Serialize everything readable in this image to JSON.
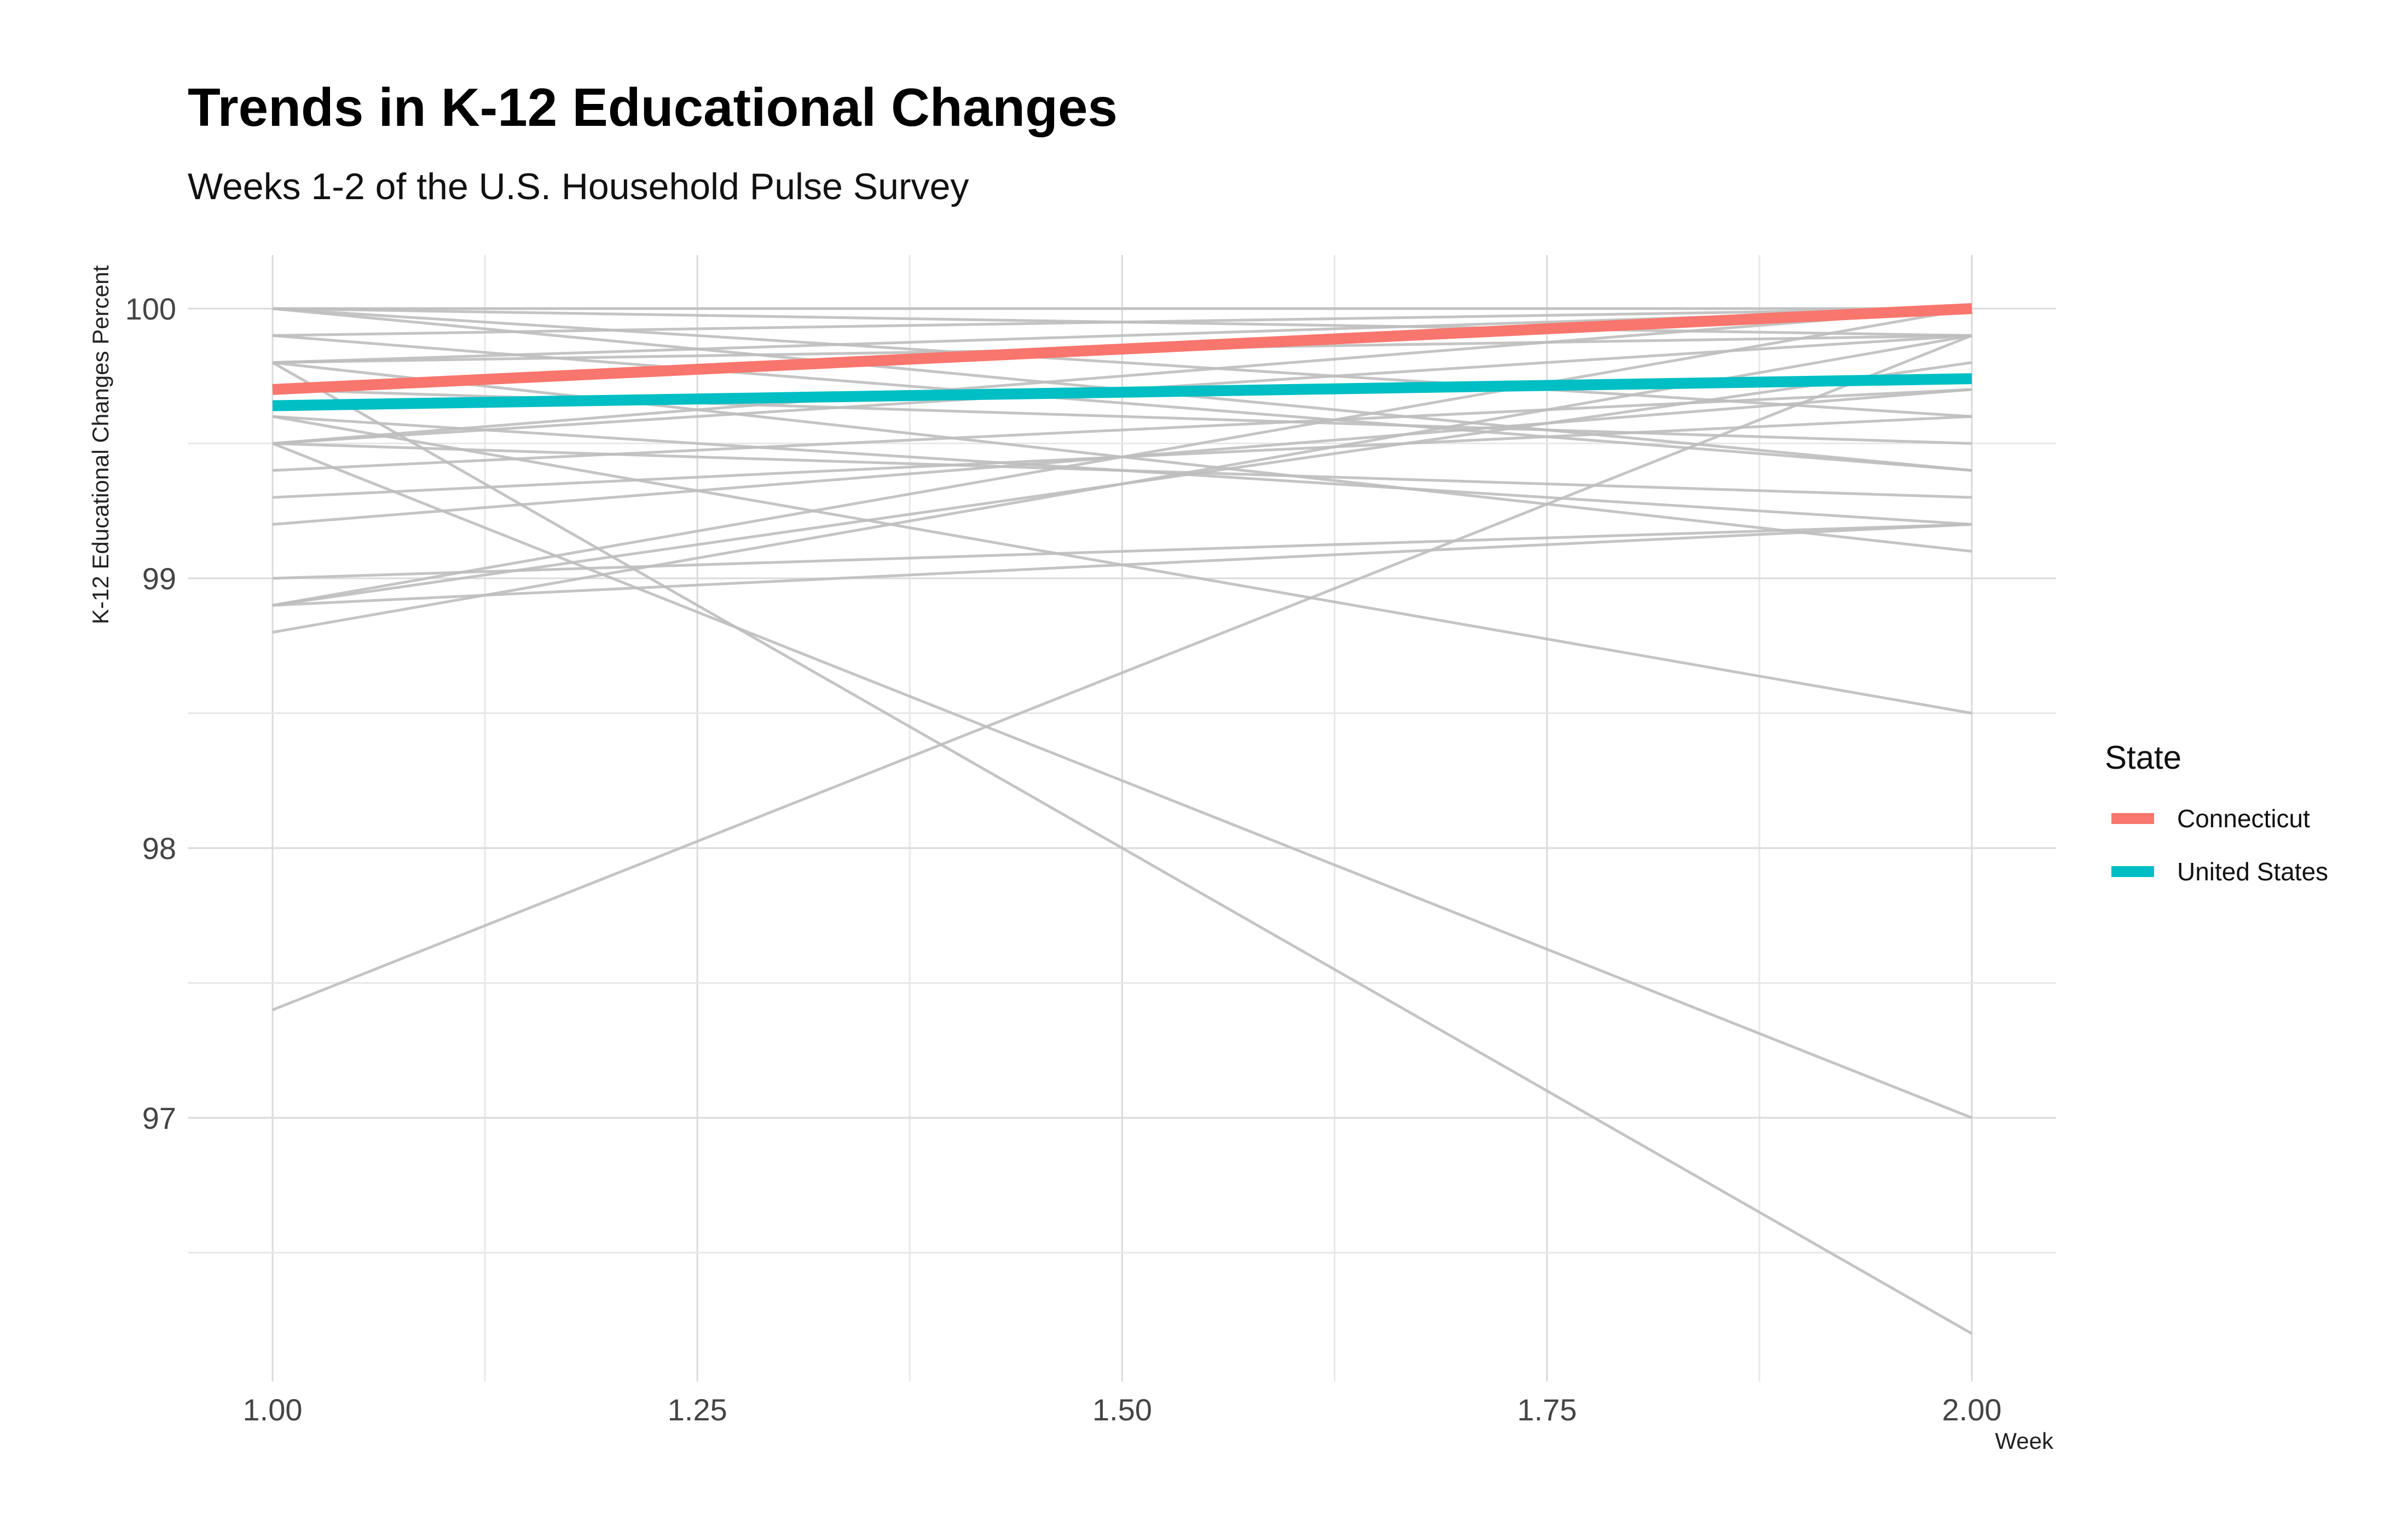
{
  "chart_data": {
    "type": "line",
    "title": "Trends in K-12 Educational Changes",
    "subtitle": "Weeks 1-2 of the U.S. Household Pulse Survey",
    "xlabel": "Week",
    "ylabel": "K-12 Educational Changes Percent",
    "xlim": [
      0.95,
      2.05
    ],
    "ylim": [
      96.0,
      100.2
    ],
    "x_ticks": [
      "1.00",
      "1.25",
      "1.50",
      "1.75",
      "2.00"
    ],
    "y_ticks": [
      "97",
      "98",
      "99",
      "100"
    ],
    "grid": true,
    "legend": {
      "title": "State",
      "position": "right",
      "entries": [
        {
          "name": "Connecticut",
          "color": "#F8766D"
        },
        {
          "name": "United States",
          "color": "#00BFC4"
        }
      ]
    },
    "background_color": "#BEBEBE",
    "background_series": [
      {
        "x": [
          1,
          2
        ],
        "y": [
          100.0,
          100.0
        ]
      },
      {
        "x": [
          1,
          2
        ],
        "y": [
          100.0,
          99.9
        ]
      },
      {
        "x": [
          1,
          2
        ],
        "y": [
          100.0,
          99.6
        ]
      },
      {
        "x": [
          1,
          2
        ],
        "y": [
          100.0,
          99.4
        ]
      },
      {
        "x": [
          1,
          2
        ],
        "y": [
          99.9,
          100.0
        ]
      },
      {
        "x": [
          1,
          2
        ],
        "y": [
          99.9,
          99.4
        ]
      },
      {
        "x": [
          1,
          2
        ],
        "y": [
          99.8,
          100.0
        ]
      },
      {
        "x": [
          1,
          2
        ],
        "y": [
          99.8,
          99.9
        ]
      },
      {
        "x": [
          1,
          2
        ],
        "y": [
          99.8,
          99.1
        ]
      },
      {
        "x": [
          1,
          2
        ],
        "y": [
          99.8,
          96.2
        ]
      },
      {
        "x": [
          1,
          2
        ],
        "y": [
          99.7,
          99.5
        ]
      },
      {
        "x": [
          1,
          2
        ],
        "y": [
          99.6,
          99.2
        ]
      },
      {
        "x": [
          1,
          2
        ],
        "y": [
          99.6,
          98.5
        ]
      },
      {
        "x": [
          1,
          2
        ],
        "y": [
          99.5,
          100.0
        ]
      },
      {
        "x": [
          1,
          2
        ],
        "y": [
          99.5,
          99.9
        ]
      },
      {
        "x": [
          1,
          2
        ],
        "y": [
          99.5,
          99.3
        ]
      },
      {
        "x": [
          1,
          2
        ],
        "y": [
          99.5,
          97.0
        ]
      },
      {
        "x": [
          1,
          2
        ],
        "y": [
          99.4,
          99.7
        ]
      },
      {
        "x": [
          1,
          2
        ],
        "y": [
          99.3,
          99.6
        ]
      },
      {
        "x": [
          1,
          2
        ],
        "y": [
          99.2,
          99.7
        ]
      },
      {
        "x": [
          1,
          2
        ],
        "y": [
          99.0,
          99.2
        ]
      },
      {
        "x": [
          1,
          2
        ],
        "y": [
          98.9,
          99.8
        ]
      },
      {
        "x": [
          1,
          2
        ],
        "y": [
          98.9,
          100.0
        ]
      },
      {
        "x": [
          1,
          2
        ],
        "y": [
          98.9,
          99.2
        ]
      },
      {
        "x": [
          1,
          2
        ],
        "y": [
          98.8,
          99.9
        ]
      },
      {
        "x": [
          1,
          2
        ],
        "y": [
          97.4,
          99.9
        ]
      }
    ],
    "series": [
      {
        "name": "Connecticut",
        "color": "#F8766D",
        "x": [
          1,
          2
        ],
        "y": [
          99.7,
          100.0
        ]
      },
      {
        "name": "United States",
        "color": "#00BFC4",
        "x": [
          1,
          2
        ],
        "y": [
          99.64,
          99.74
        ]
      }
    ]
  }
}
